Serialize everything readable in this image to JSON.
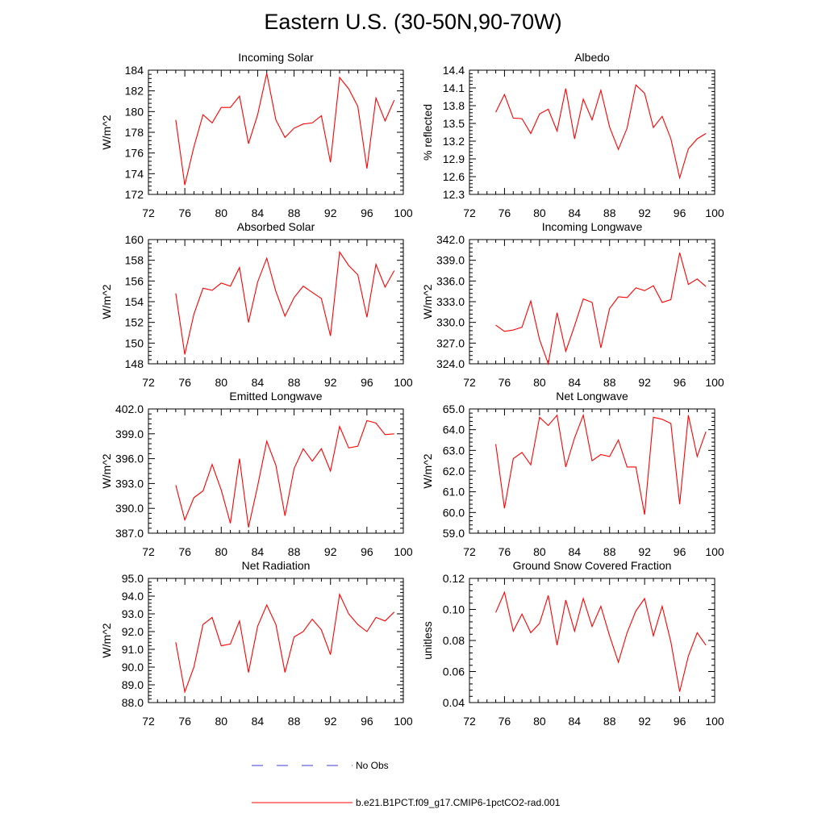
{
  "title": "Eastern U.S. (30-50N,90-70W)",
  "legend": {
    "items": [
      {
        "label": "No Obs",
        "color": "#3b3bd6",
        "dash": "dashed"
      },
      {
        "label": "b.e21.B1PCT.f09_g17.CMIP6-1pctCO2-rad.001",
        "color": "#ff0000",
        "dash": "solid"
      }
    ]
  },
  "chart_data": [
    {
      "type": "line",
      "title": "Incoming Solar",
      "xlabel": "",
      "ylabel": "W/m^2",
      "xlim": [
        72,
        100
      ],
      "ylim": [
        172,
        184
      ],
      "xticks": [
        72,
        76,
        80,
        84,
        88,
        92,
        96,
        100
      ],
      "yticks": [
        172,
        174,
        176,
        178,
        180,
        182,
        184
      ],
      "ytick_labels": [
        "172",
        "174",
        "176",
        "178",
        "180",
        "182",
        "184"
      ],
      "x": [
        75,
        76,
        77,
        78,
        79,
        80,
        81,
        82,
        83,
        84,
        85,
        86,
        87,
        88,
        89,
        90,
        91,
        92,
        93,
        94,
        95,
        96,
        97,
        98,
        99
      ],
      "series": [
        {
          "name": "b.e21.B1PCT.f09_g17.CMIP6-1pctCO2-rad.001",
          "color": "#ff0000",
          "values": [
            179.2,
            172.9,
            176.6,
            179.7,
            178.9,
            180.4,
            180.4,
            181.5,
            176.9,
            179.7,
            183.7,
            179.2,
            177.5,
            178.4,
            178.8,
            178.9,
            179.6,
            175.1,
            183.3,
            182.2,
            180.5,
            174.5,
            181.3,
            179.1,
            181.1
          ]
        }
      ]
    },
    {
      "type": "line",
      "title": "Albedo",
      "xlabel": "",
      "ylabel": "% reflected",
      "xlim": [
        72,
        100
      ],
      "ylim": [
        12.3,
        14.4
      ],
      "xticks": [
        72,
        76,
        80,
        84,
        88,
        92,
        96,
        100
      ],
      "yticks": [
        12.3,
        12.6,
        12.9,
        13.2,
        13.5,
        13.8,
        14.1,
        14.4
      ],
      "ytick_labels": [
        "12.3",
        "12.6",
        "12.9",
        "13.2",
        "13.5",
        "13.8",
        "14.1",
        "14.4"
      ],
      "x": [
        75,
        76,
        77,
        78,
        79,
        80,
        81,
        82,
        83,
        84,
        85,
        86,
        87,
        88,
        89,
        90,
        91,
        92,
        93,
        94,
        95,
        96,
        97,
        98,
        99
      ],
      "series": [
        {
          "name": "b.e21.B1PCT.f09_g17.CMIP6-1pctCO2-rad.001",
          "color": "#ff0000",
          "values": [
            13.69,
            13.99,
            13.59,
            13.58,
            13.33,
            13.66,
            13.74,
            13.37,
            14.09,
            13.24,
            13.91,
            13.56,
            14.06,
            13.44,
            13.06,
            13.42,
            14.15,
            14.01,
            13.43,
            13.62,
            13.24,
            12.58,
            13.07,
            13.24,
            13.33
          ]
        }
      ]
    },
    {
      "type": "line",
      "title": "Absorbed Solar",
      "xlabel": "",
      "ylabel": "W/m^2",
      "xlim": [
        72,
        100
      ],
      "ylim": [
        148,
        160
      ],
      "xticks": [
        72,
        76,
        80,
        84,
        88,
        92,
        96,
        100
      ],
      "yticks": [
        148,
        150,
        152,
        154,
        156,
        158,
        160
      ],
      "ytick_labels": [
        "148",
        "150",
        "152",
        "154",
        "156",
        "158",
        "160"
      ],
      "x": [
        75,
        76,
        77,
        78,
        79,
        80,
        81,
        82,
        83,
        84,
        85,
        86,
        87,
        88,
        89,
        90,
        91,
        92,
        93,
        94,
        95,
        96,
        97,
        98,
        99
      ],
      "series": [
        {
          "name": "b.e21.B1PCT.f09_g17.CMIP6-1pctCO2-rad.001",
          "color": "#ff0000",
          "values": [
            154.8,
            148.9,
            152.8,
            155.3,
            155.1,
            155.8,
            155.5,
            157.3,
            152.0,
            155.9,
            158.2,
            155.0,
            152.6,
            154.4,
            155.5,
            154.9,
            154.3,
            150.7,
            158.8,
            157.5,
            156.6,
            152.5,
            157.6,
            155.4,
            157.0
          ]
        }
      ]
    },
    {
      "type": "line",
      "title": "Incoming Longwave",
      "xlabel": "",
      "ylabel": "W/m^2",
      "xlim": [
        72,
        100
      ],
      "ylim": [
        324.0,
        342.0
      ],
      "xticks": [
        72,
        76,
        80,
        84,
        88,
        92,
        96,
        100
      ],
      "yticks": [
        324,
        327,
        330,
        333,
        336,
        339,
        342
      ],
      "ytick_labels": [
        "324.0",
        "327.0",
        "330.0",
        "333.0",
        "336.0",
        "339.0",
        "342.0"
      ],
      "x": [
        75,
        76,
        77,
        78,
        79,
        80,
        81,
        82,
        83,
        84,
        85,
        86,
        87,
        88,
        89,
        90,
        91,
        92,
        93,
        94,
        95,
        96,
        97,
        98,
        99
      ],
      "series": [
        {
          "name": "b.e21.B1PCT.f09_g17.CMIP6-1pctCO2-rad.001",
          "color": "#ff0000",
          "values": [
            329.6,
            328.7,
            328.9,
            329.3,
            333.1,
            327.5,
            324.0,
            331.4,
            325.8,
            329.5,
            333.4,
            332.9,
            326.3,
            332.0,
            333.7,
            333.6,
            335.0,
            334.6,
            335.3,
            332.9,
            333.3,
            340.1,
            335.5,
            336.3,
            335.2
          ]
        }
      ]
    },
    {
      "type": "line",
      "title": "Emitted Longwave",
      "xlabel": "",
      "ylabel": "W/m^2",
      "xlim": [
        72,
        100
      ],
      "ylim": [
        387.0,
        402.0
      ],
      "xticks": [
        72,
        76,
        80,
        84,
        88,
        92,
        96,
        100
      ],
      "yticks": [
        387,
        390,
        393,
        396,
        399,
        402
      ],
      "ytick_labels": [
        "387.0",
        "390.0",
        "393.0",
        "396.0",
        "399.0",
        "402.0"
      ],
      "x": [
        75,
        76,
        77,
        78,
        79,
        80,
        81,
        82,
        83,
        84,
        85,
        86,
        87,
        88,
        89,
        90,
        91,
        92,
        93,
        94,
        95,
        96,
        97,
        98,
        99
      ],
      "series": [
        {
          "name": "b.e21.B1PCT.f09_g17.CMIP6-1pctCO2-rad.001",
          "color": "#ff0000",
          "values": [
            392.8,
            388.6,
            391.3,
            392.1,
            395.3,
            392.2,
            388.2,
            396.0,
            387.7,
            392.7,
            398.1,
            395.2,
            389.1,
            394.8,
            397.2,
            395.7,
            397.2,
            394.5,
            399.9,
            397.3,
            397.5,
            400.6,
            400.3,
            398.9,
            399.0
          ]
        }
      ]
    },
    {
      "type": "line",
      "title": "Net Longwave",
      "xlabel": "",
      "ylabel": "W/m^2",
      "xlim": [
        72,
        100
      ],
      "ylim": [
        59.0,
        65.0
      ],
      "xticks": [
        72,
        76,
        80,
        84,
        88,
        92,
        96,
        100
      ],
      "yticks": [
        59,
        60,
        61,
        62,
        63,
        64,
        65
      ],
      "ytick_labels": [
        "59.0",
        "60.0",
        "61.0",
        "62.0",
        "63.0",
        "64.0",
        "65.0"
      ],
      "x": [
        75,
        76,
        77,
        78,
        79,
        80,
        81,
        82,
        83,
        84,
        85,
        86,
        87,
        88,
        89,
        90,
        91,
        92,
        93,
        94,
        95,
        96,
        97,
        98,
        99
      ],
      "series": [
        {
          "name": "b.e21.B1PCT.f09_g17.CMIP6-1pctCO2-rad.001",
          "color": "#ff0000",
          "values": [
            63.3,
            60.2,
            62.6,
            62.9,
            62.3,
            64.6,
            64.2,
            64.7,
            62.2,
            63.6,
            64.7,
            62.5,
            62.8,
            62.7,
            63.5,
            62.2,
            62.2,
            59.9,
            64.6,
            64.5,
            64.3,
            60.4,
            64.7,
            62.7,
            63.9
          ]
        }
      ]
    },
    {
      "type": "line",
      "title": "Net Radiation",
      "xlabel": "",
      "ylabel": "W/m^2",
      "xlim": [
        72,
        100
      ],
      "ylim": [
        88.0,
        95.0
      ],
      "xticks": [
        72,
        76,
        80,
        84,
        88,
        92,
        96,
        100
      ],
      "yticks": [
        88,
        89,
        90,
        91,
        92,
        93,
        94,
        95
      ],
      "ytick_labels": [
        "88.0",
        "89.0",
        "90.0",
        "91.0",
        "92.0",
        "93.0",
        "94.0",
        "95.0"
      ],
      "x": [
        75,
        76,
        77,
        78,
        79,
        80,
        81,
        82,
        83,
        84,
        85,
        86,
        87,
        88,
        89,
        90,
        91,
        92,
        93,
        94,
        95,
        96,
        97,
        98,
        99
      ],
      "series": [
        {
          "name": "b.e21.B1PCT.f09_g17.CMIP6-1pctCO2-rad.001",
          "color": "#ff0000",
          "values": [
            91.4,
            88.6,
            90.0,
            92.4,
            92.8,
            91.2,
            91.3,
            92.6,
            89.7,
            92.3,
            93.5,
            92.4,
            89.7,
            91.7,
            92.0,
            92.7,
            92.1,
            90.7,
            94.1,
            93.0,
            92.4,
            92.0,
            92.8,
            92.6,
            93.1
          ]
        }
      ]
    },
    {
      "type": "line",
      "title": "Ground Snow Covered Fraction",
      "xlabel": "",
      "ylabel": "unitless",
      "xlim": [
        72,
        100
      ],
      "ylim": [
        0.04,
        0.12
      ],
      "xticks": [
        72,
        76,
        80,
        84,
        88,
        92,
        96,
        100
      ],
      "yticks": [
        0.04,
        0.06,
        0.08,
        0.1,
        0.12
      ],
      "ytick_labels": [
        "0.04",
        "0.06",
        "0.08",
        "0.10",
        "0.12"
      ],
      "x": [
        75,
        76,
        77,
        78,
        79,
        80,
        81,
        82,
        83,
        84,
        85,
        86,
        87,
        88,
        89,
        90,
        91,
        92,
        93,
        94,
        95,
        96,
        97,
        98,
        99
      ],
      "series": [
        {
          "name": "b.e21.B1PCT.f09_g17.CMIP6-1pctCO2-rad.001",
          "color": "#ff0000",
          "values": [
            0.098,
            0.111,
            0.086,
            0.097,
            0.085,
            0.091,
            0.109,
            0.077,
            0.106,
            0.086,
            0.107,
            0.089,
            0.102,
            0.083,
            0.066,
            0.085,
            0.099,
            0.107,
            0.083,
            0.102,
            0.079,
            0.047,
            0.07,
            0.085,
            0.077
          ]
        }
      ]
    }
  ]
}
